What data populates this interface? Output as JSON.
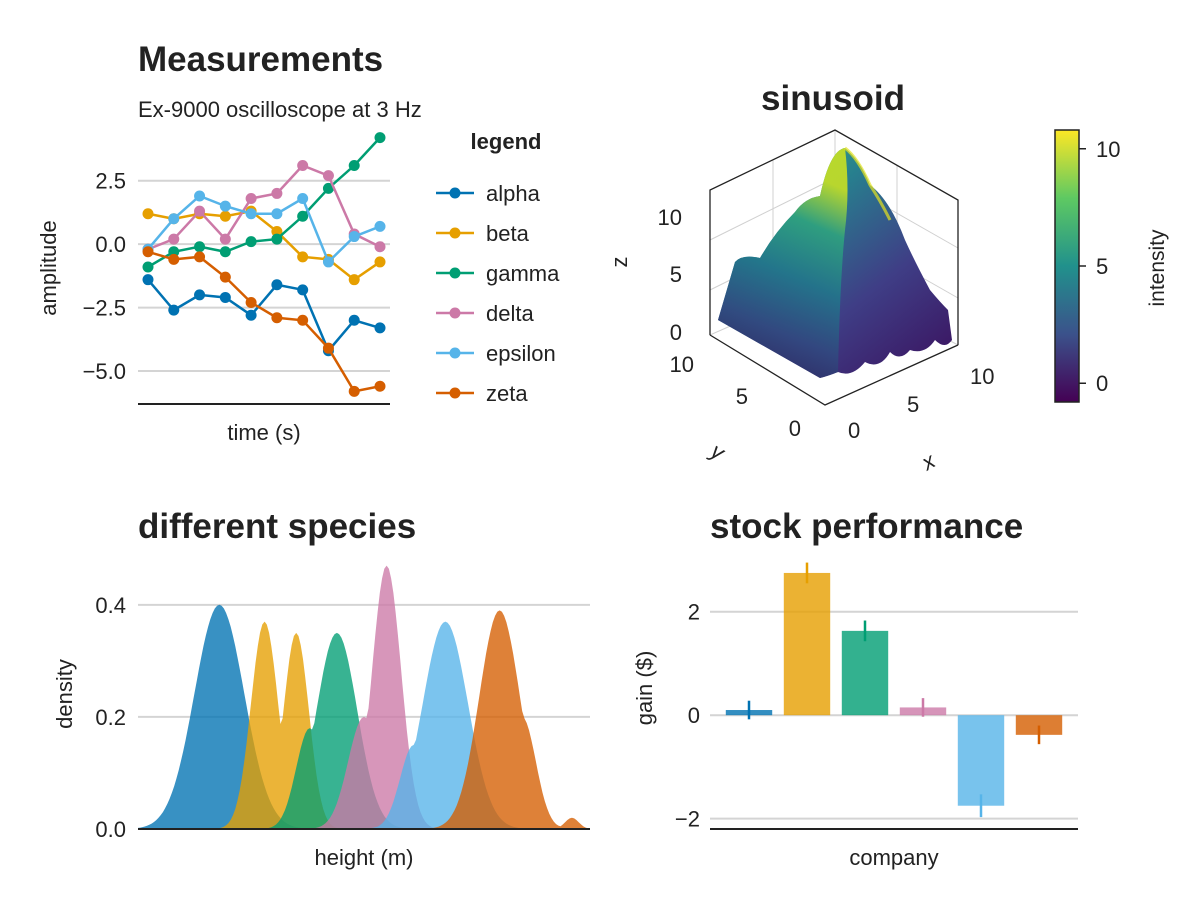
{
  "colors": {
    "alpha": "#0072b2",
    "beta": "#e69f00",
    "gamma": "#009e73",
    "delta": "#cc79a7",
    "epsilon": "#56b4e9",
    "zeta": "#d55e00",
    "grid": "#d4d4d4",
    "axis": "#222222",
    "text": "#222222"
  },
  "chart_data": [
    {
      "type": "line",
      "title": "Measurements",
      "subtitle": "Ex-9000 oscilloscope at 3 Hz",
      "xlabel": "time (s)",
      "ylabel": "amplitude",
      "ylim": [
        -6.3,
        4.5
      ],
      "yticks": [
        2.5,
        0.0,
        -2.5,
        -5.0
      ],
      "ytick_labels": [
        "2.5",
        "0.0",
        "−2.5",
        "−5.0"
      ],
      "grid": true,
      "legend_title": "legend",
      "legend_position": "right",
      "x": [
        1,
        2,
        3,
        4,
        5,
        6,
        7,
        8,
        9,
        10
      ],
      "series": [
        {
          "name": "alpha",
          "color_key": "alpha",
          "values": [
            -1.4,
            -2.6,
            -2.0,
            -2.1,
            -2.8,
            -1.6,
            -1.8,
            -4.2,
            -3.0,
            -3.3
          ]
        },
        {
          "name": "beta",
          "color_key": "beta",
          "values": [
            1.2,
            1.0,
            1.2,
            1.1,
            1.3,
            0.5,
            -0.5,
            -0.6,
            -1.4,
            -0.7
          ]
        },
        {
          "name": "gamma",
          "color_key": "gamma",
          "values": [
            -0.9,
            -0.3,
            -0.1,
            -0.3,
            0.1,
            0.2,
            1.1,
            2.2,
            3.1,
            4.2
          ]
        },
        {
          "name": "delta",
          "color_key": "delta",
          "values": [
            -0.2,
            0.2,
            1.3,
            0.2,
            1.8,
            2.0,
            3.1,
            2.7,
            0.4,
            -0.1
          ]
        },
        {
          "name": "epsilon",
          "color_key": "epsilon",
          "values": [
            -0.2,
            1.0,
            1.9,
            1.5,
            1.2,
            1.2,
            1.8,
            -0.7,
            0.3,
            0.7
          ]
        },
        {
          "name": "zeta",
          "color_key": "zeta",
          "values": [
            -0.3,
            -0.6,
            -0.5,
            -1.3,
            -2.3,
            -2.9,
            -3.0,
            -4.1,
            -5.8,
            -5.6
          ]
        }
      ]
    },
    {
      "type": "surface",
      "title": "sinusoid",
      "xlabel": "x",
      "ylabel": "y",
      "zlabel": "z",
      "xticks": [
        "0",
        "5",
        "10"
      ],
      "yticks": [
        "0",
        "5",
        "10"
      ],
      "zticks": [
        "0",
        "5",
        "10"
      ],
      "colorbar": {
        "label": "intensity",
        "ticks": [
          "10",
          "5",
          "0"
        ],
        "range": [
          -0.8,
          10.8
        ],
        "colormap": "viridis"
      }
    },
    {
      "type": "area",
      "title": "different species",
      "xlabel": "height (m)",
      "ylabel": "density",
      "ylim": [
        0,
        0.48
      ],
      "yticks": [
        "0.4",
        "0.2",
        "0.0"
      ],
      "grid": true,
      "series": [
        {
          "color_key": "alpha",
          "peaks": [
            [
              3.0,
              0.4,
              0.55
            ]
          ]
        },
        {
          "color_key": "beta",
          "peaks": [
            [
              4.0,
              0.37,
              0.3
            ],
            [
              4.7,
              0.35,
              0.28
            ]
          ]
        },
        {
          "color_key": "gamma",
          "peaks": [
            [
              5.6,
              0.35,
              0.45
            ],
            [
              5.0,
              0.18,
              0.3
            ]
          ]
        },
        {
          "color_key": "delta",
          "peaks": [
            [
              6.7,
              0.47,
              0.32
            ],
            [
              6.2,
              0.2,
              0.35
            ]
          ]
        },
        {
          "color_key": "epsilon",
          "peaks": [
            [
              8.0,
              0.37,
              0.5
            ],
            [
              7.3,
              0.15,
              0.3
            ]
          ]
        },
        {
          "color_key": "zeta",
          "peaks": [
            [
              9.2,
              0.39,
              0.45
            ],
            [
              9.7,
              0.2,
              0.3
            ],
            [
              10.8,
              0.02,
              0.15
            ]
          ]
        }
      ]
    },
    {
      "type": "bar",
      "title": "stock performance",
      "xlabel": "company",
      "ylabel": "gain ($)",
      "ylim": [
        -2.2,
        3.0
      ],
      "yticks": [
        "2",
        "0",
        "−2"
      ],
      "grid": true,
      "bars": [
        {
          "value": 0.1,
          "error": 0.18,
          "color_key": "alpha"
        },
        {
          "value": 2.75,
          "error": 0.2,
          "color_key": "beta"
        },
        {
          "value": 1.63,
          "error": 0.2,
          "color_key": "gamma"
        },
        {
          "value": 0.15,
          "error": 0.18,
          "color_key": "delta"
        },
        {
          "value": -1.75,
          "error": 0.22,
          "color_key": "epsilon"
        },
        {
          "value": -0.38,
          "error": 0.18,
          "color_key": "zeta"
        }
      ]
    }
  ]
}
